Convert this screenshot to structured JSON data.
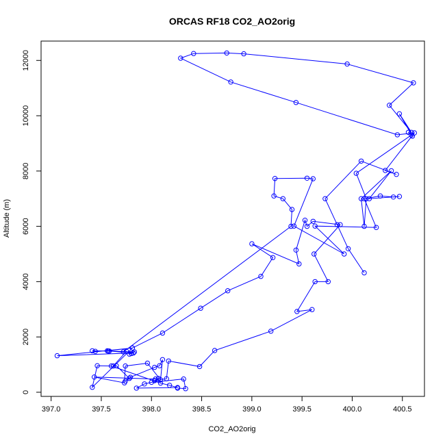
{
  "chart_data": {
    "type": "line",
    "title": "ORCAS RF18 CO2_AO2orig",
    "xlabel": "CO2_AO2orig",
    "ylabel": "Altitude (m)",
    "xlim": [
      396.9,
      400.72
    ],
    "ylim": [
      -150,
      12700
    ],
    "xticks": [
      397.0,
      397.5,
      398.0,
      398.5,
      399.0,
      399.5,
      400.0,
      400.5
    ],
    "xtick_labels": [
      "397.0",
      "397.5",
      "398.0",
      "398.5",
      "399.0",
      "399.5",
      "400.0",
      "400.5"
    ],
    "yticks": [
      0,
      2000,
      4000,
      6000,
      8000,
      10000,
      12000
    ],
    "ytick_labels": [
      "0",
      "2000",
      "4000",
      "6000",
      "8000",
      "10000",
      "12000"
    ],
    "grid": false,
    "series": [
      {
        "color": "#0000ff",
        "marker": "open-circle",
        "points": [
          [
            398.26,
            150
          ],
          [
            398.34,
            130
          ],
          [
            398.32,
            480
          ],
          [
            398.0,
            360
          ],
          [
            397.93,
            300
          ],
          [
            397.85,
            150
          ],
          [
            398.26,
            170
          ],
          [
            398.18,
            250
          ],
          [
            398.09,
            330
          ],
          [
            397.6,
            950
          ],
          [
            397.46,
            960
          ],
          [
            397.41,
            180
          ],
          [
            397.81,
            1600
          ],
          [
            397.06,
            1320
          ],
          [
            397.82,
            1420
          ],
          [
            397.57,
            1490
          ],
          [
            397.83,
            1460
          ],
          [
            397.8,
            1400
          ],
          [
            397.78,
            1380
          ],
          [
            397.75,
            1480
          ],
          [
            397.62,
            950
          ],
          [
            397.65,
            960
          ],
          [
            397.78,
            500
          ],
          [
            397.74,
            400
          ],
          [
            397.79,
            540
          ],
          [
            398.03,
            900
          ],
          [
            398.08,
            960
          ],
          [
            398.11,
            1180
          ],
          [
            398.09,
            450
          ],
          [
            397.96,
            1050
          ],
          [
            397.74,
            950
          ],
          [
            397.73,
            340
          ],
          [
            397.43,
            550
          ],
          [
            398.04,
            480
          ],
          [
            398.07,
            500
          ],
          [
            398.03,
            420
          ],
          [
            398.15,
            490
          ],
          [
            398.17,
            1130
          ],
          [
            398.48,
            930
          ],
          [
            398.63,
            1510
          ],
          [
            399.19,
            2210
          ],
          [
            399.6,
            2990
          ],
          [
            399.45,
            2920
          ],
          [
            399.63,
            4000
          ],
          [
            399.76,
            4000
          ],
          [
            399.62,
            5000
          ],
          [
            399.88,
            6060
          ],
          [
            399.61,
            6180
          ],
          [
            399.55,
            6000
          ],
          [
            399.53,
            6220
          ],
          [
            399.44,
            5140
          ],
          [
            399.47,
            4640
          ],
          [
            399.0,
            5370
          ],
          [
            399.21,
            4870
          ],
          [
            399.09,
            4190
          ],
          [
            398.76,
            3670
          ],
          [
            398.49,
            3040
          ],
          [
            398.11,
            2140
          ],
          [
            397.81,
            1600
          ],
          [
            397.56,
            1500
          ],
          [
            397.44,
            1480
          ],
          [
            397.41,
            1500
          ],
          [
            397.58,
            1490
          ],
          [
            397.72,
            1460
          ],
          [
            399.39,
            6000
          ],
          [
            399.4,
            6610
          ],
          [
            399.31,
            7000
          ],
          [
            399.22,
            7100
          ],
          [
            399.23,
            7730
          ],
          [
            399.55,
            7740
          ],
          [
            399.61,
            7720
          ],
          [
            399.42,
            6010
          ],
          [
            399.92,
            5000
          ],
          [
            399.63,
            6010
          ],
          [
            400.24,
            5960
          ],
          [
            400.12,
            7000
          ],
          [
            400.28,
            7100
          ],
          [
            400.41,
            7060
          ],
          [
            400.47,
            7080
          ],
          [
            400.17,
            7000
          ],
          [
            400.39,
            8010
          ],
          [
            400.09,
            7000
          ],
          [
            400.12,
            6000
          ],
          [
            400.14,
            7000
          ],
          [
            400.04,
            7920
          ],
          [
            400.59,
            9300
          ],
          [
            400.56,
            9400
          ],
          [
            400.6,
            9260
          ],
          [
            400.47,
            10070
          ],
          [
            400.59,
            9400
          ],
          [
            400.37,
            10380
          ],
          [
            400.61,
            11190
          ],
          [
            399.95,
            11870
          ],
          [
            398.92,
            12240
          ],
          [
            398.75,
            12270
          ],
          [
            398.42,
            12250
          ],
          [
            398.29,
            12080
          ],
          [
            398.79,
            11220
          ],
          [
            399.44,
            10480
          ],
          [
            400.45,
            9310
          ],
          [
            400.62,
            9380
          ],
          [
            400.33,
            8020
          ],
          [
            400.44,
            7880
          ],
          [
            400.09,
            8360
          ],
          [
            399.73,
            7000
          ],
          [
            399.85,
            6060
          ],
          [
            399.96,
            5190
          ],
          [
            400.12,
            4320
          ]
        ]
      }
    ]
  }
}
